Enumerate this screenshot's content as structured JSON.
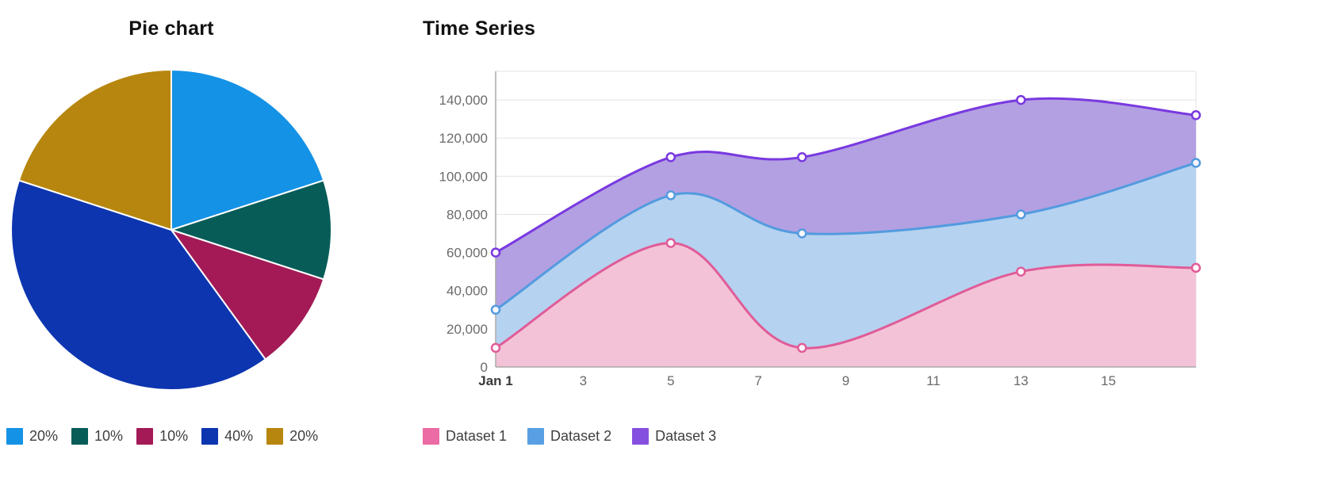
{
  "pie_panel": {
    "title": "Pie chart",
    "legend": [
      {
        "label": "20%",
        "color": "#1492e6"
      },
      {
        "label": "10%",
        "color": "#075c58"
      },
      {
        "label": "10%",
        "color": "#a31a56"
      },
      {
        "label": "40%",
        "color": "#0d35b0"
      },
      {
        "label": "20%",
        "color": "#b7860e"
      }
    ]
  },
  "timeseries_panel": {
    "title": "Time Series",
    "legend": [
      {
        "label": "Dataset 1",
        "color": "#ec6ba4"
      },
      {
        "label": "Dataset 2",
        "color": "#58a0e3"
      },
      {
        "label": "Dataset 3",
        "color": "#8550e0"
      }
    ]
  },
  "chart_data": [
    {
      "type": "pie",
      "title": "Pie chart",
      "labels": [
        "20%",
        "10%",
        "10%",
        "40%",
        "20%"
      ],
      "values": [
        20,
        10,
        10,
        40,
        20
      ],
      "colors": [
        "#1492e6",
        "#075c58",
        "#a31a56",
        "#0d35b0",
        "#b7860e"
      ],
      "start_angle": "top",
      "direction": "clockwise",
      "legend_position": "bottom"
    },
    {
      "type": "area",
      "title": "Time Series",
      "x": [
        1,
        5,
        8,
        13,
        17
      ],
      "x_unit": "day of January",
      "series": [
        {
          "name": "Dataset 1",
          "values": [
            10000,
            65000,
            10000,
            50000,
            52000
          ],
          "line_color": "#e05c98",
          "fill_color": "#f3c2d7"
        },
        {
          "name": "Dataset 2",
          "values": [
            30000,
            90000,
            70000,
            80000,
            107000
          ],
          "line_color": "#539bdf",
          "fill_color": "#b5d2f0"
        },
        {
          "name": "Dataset 3",
          "values": [
            60000,
            110000,
            110000,
            140000,
            132000
          ],
          "line_color": "#7939e0",
          "fill_color": "#b3a0e2"
        }
      ],
      "xlim": [
        1,
        17
      ],
      "ylim": [
        0,
        155000
      ],
      "x_ticks": [
        1,
        3,
        5,
        7,
        9,
        11,
        13,
        15
      ],
      "x_tick_labels": [
        "Jan 1",
        "3",
        "5",
        "7",
        "9",
        "11",
        "13",
        "15"
      ],
      "y_ticks": [
        0,
        20000,
        40000,
        60000,
        80000,
        100000,
        120000,
        140000
      ],
      "y_tick_labels": [
        "0",
        "20,000",
        "40,000",
        "60,000",
        "80,000",
        "100,000",
        "120,000",
        "140,000"
      ],
      "grid": "horizontal",
      "curve": "smooth",
      "markers": true,
      "legend_position": "bottom"
    }
  ]
}
